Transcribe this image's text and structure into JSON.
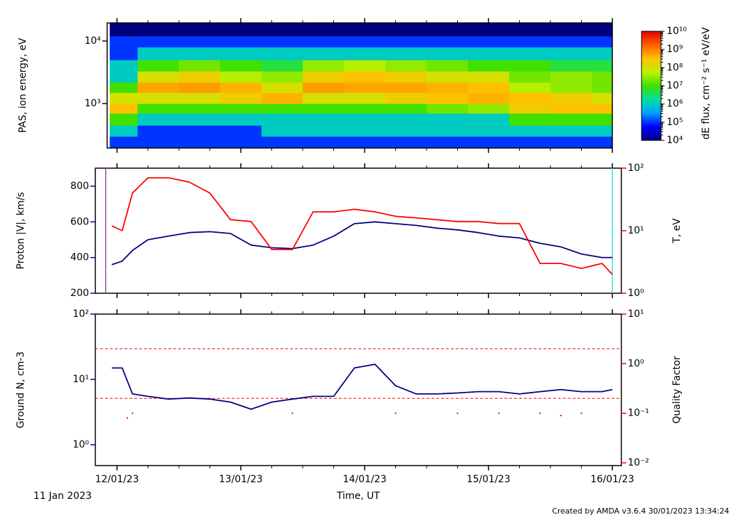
{
  "chart_data": [
    {
      "type": "heatmap",
      "ylabel": "PAS, ion energy, eV",
      "log_y": true,
      "xlim": [
        22.1,
        120
      ],
      "ylim": [
        195,
        19450
      ],
      "yticks": [
        {
          "value": 1000,
          "label": "10³"
        },
        {
          "value": 10000,
          "label": "10⁴"
        }
      ],
      "x_edges": [
        22.6,
        28,
        36,
        44,
        52,
        60,
        68,
        76,
        84,
        92,
        100,
        108,
        116,
        120
      ],
      "y_edges": [
        195,
        300,
        450,
        700,
        1000,
        1500,
        2200,
        3300,
        5000,
        8000,
        12000,
        19450
      ],
      "z": [
        [
          100000.0,
          1000000.0,
          10000000.0,
          300000000.0,
          100000000.0,
          10000000.0,
          1000000.0,
          1000000.0,
          100000.0,
          100000.0,
          10000.0
        ],
        [
          100000.0,
          100000.0,
          1000000.0,
          10000000.0,
          100000000.0,
          500000000.0,
          100000000.0,
          10000000.0,
          1000000.0,
          100000.0,
          10000.0
        ],
        [
          100000.0,
          100000.0,
          1000000.0,
          10000000.0,
          100000000.0,
          600000000.0,
          200000000.0,
          20000000.0,
          1000000.0,
          100000.0,
          10000.0
        ],
        [
          100000.0,
          100000.0,
          1000000.0,
          10000000.0,
          200000000.0,
          400000000.0,
          50000000.0,
          10000000.0,
          1000000.0,
          100000.0,
          10000.0
        ],
        [
          100000.0,
          1000000.0,
          1000000.0,
          10000000.0,
          400000000.0,
          100000000.0,
          30000000.0,
          5000000.0,
          1000000.0,
          100000.0,
          10000.0
        ],
        [
          100000.0,
          1000000.0,
          1000000.0,
          10000000.0,
          100000000.0,
          600000000.0,
          200000000.0,
          30000000.0,
          1000000.0,
          100000.0,
          10000.0
        ],
        [
          100000.0,
          1000000.0,
          1000000.0,
          10000000.0,
          100000000.0,
          500000000.0,
          300000000.0,
          50000000.0,
          1000000.0,
          100000.0,
          10000.0
        ],
        [
          100000.0,
          1000000.0,
          1000000.0,
          10000000.0,
          200000000.0,
          500000000.0,
          200000000.0,
          30000000.0,
          1000000.0,
          100000.0,
          10000.0
        ],
        [
          100000.0,
          1000000.0,
          1000000.0,
          20000000.0,
          300000000.0,
          400000000.0,
          100000000.0,
          20000000.0,
          1000000.0,
          100000.0,
          10000.0
        ],
        [
          100000.0,
          1000000.0,
          1000000.0,
          30000000.0,
          400000000.0,
          300000000.0,
          100000000.0,
          10000000.0,
          1000000.0,
          100000.0,
          10000.0
        ],
        [
          100000.0,
          1000000.0,
          10000000.0,
          200000000.0,
          300000000.0,
          50000000.0,
          20000000.0,
          10000000.0,
          1000000.0,
          100000.0,
          10000.0
        ],
        [
          100000.0,
          1000000.0,
          10000000.0,
          300000000.0,
          200000000.0,
          30000000.0,
          30000000.0,
          5000000.0,
          1000000.0,
          100000.0,
          10000.0
        ],
        [
          100000.0,
          1000000.0,
          10000000.0,
          300000000.0,
          100000000.0,
          20000000.0,
          20000000.0,
          5000000.0,
          1000000.0,
          100000.0,
          10000.0
        ]
      ],
      "colorbar": {
        "label": "dE flux, cm⁻² s⁻¹ eV/eV",
        "log": true,
        "lim": [
          10000,
          10000000000
        ],
        "ticks": [
          {
            "value": 10000,
            "label": "10⁴"
          },
          {
            "value": 100000,
            "label": "10⁵"
          },
          {
            "value": 1000000,
            "label": "10⁶"
          },
          {
            "value": 10000000,
            "label": "10⁷"
          },
          {
            "value": 100000000,
            "label": "10⁸"
          },
          {
            "value": 1000000000,
            "label": "10⁹"
          },
          {
            "value": 10000000000,
            "label": "10¹⁰"
          }
        ],
        "colormap": [
          "#00007f",
          "#0000ff",
          "#00a0ff",
          "#00e0a0",
          "#40e000",
          "#c0f000",
          "#ffc000",
          "#ff6000",
          "#e00000"
        ]
      }
    },
    {
      "type": "line",
      "xlim": [
        19.8,
        121.75
      ],
      "x": [
        23,
        25,
        27,
        30,
        34,
        38,
        42,
        46,
        50,
        54,
        58,
        62,
        66,
        70,
        74,
        78,
        82,
        86,
        90,
        94,
        98,
        102,
        106,
        110,
        114,
        118,
        120
      ],
      "ylim": [
        200,
        901
      ],
      "yticks": [
        200,
        400,
        600,
        800
      ],
      "y2lim": [
        1,
        100
      ],
      "log_y2": true,
      "y2ticks": [
        {
          "value": 1,
          "label": "10⁰"
        },
        {
          "value": 10,
          "label": "10¹"
        },
        {
          "value": 100,
          "label": "10²"
        }
      ],
      "series": [
        {
          "name": "Proton |V|, km/s",
          "color": "#000080",
          "values": [
            360,
            380,
            440,
            500,
            520,
            540,
            545,
            535,
            470,
            455,
            450,
            470,
            520,
            590,
            600,
            590,
            580,
            565,
            555,
            540,
            520,
            510,
            480,
            460,
            420,
            400,
            400
          ]
        },
        {
          "name": "T, eV",
          "color": "#ff0000",
          "axis": "y2",
          "values": [
            12,
            10,
            40,
            70,
            70,
            60,
            40,
            15,
            14,
            5,
            5,
            20,
            20,
            22,
            20,
            17,
            16,
            15,
            14,
            14,
            13,
            13,
            3,
            3,
            2.5,
            3,
            2
          ]
        }
      ],
      "vlines": [
        {
          "x": 21.8,
          "color": "#a040b0"
        },
        {
          "x": 120,
          "color": "#40e0e0"
        }
      ]
    },
    {
      "type": "line",
      "xlim": [
        19.8,
        121.75
      ],
      "xlabel": "Time, UT",
      "xticks": [
        {
          "value": 24,
          "label": "12/01/23"
        },
        {
          "value": 48,
          "label": "13/01/23"
        },
        {
          "value": 72,
          "label": "14/01/23"
        },
        {
          "value": 96,
          "label": "15/01/23"
        },
        {
          "value": 120,
          "label": "16/01/23"
        }
      ],
      "x": [
        23,
        25,
        27,
        30,
        34,
        38,
        42,
        46,
        50,
        54,
        58,
        62,
        66,
        70,
        74,
        78,
        82,
        86,
        90,
        94,
        98,
        102,
        106,
        110,
        114,
        118,
        120
      ],
      "ylim": [
        0.48,
        100
      ],
      "log_y": true,
      "yticks": [
        {
          "value": 1,
          "label": "10⁰"
        },
        {
          "value": 10,
          "label": "10¹"
        },
        {
          "value": 100,
          "label": "10²"
        }
      ],
      "y2lim": [
        0.0088,
        10
      ],
      "log_y2": true,
      "y2ticks": [
        {
          "value": 0.01,
          "label": "10⁻²"
        },
        {
          "value": 0.1,
          "label": "10⁻¹"
        },
        {
          "value": 1,
          "label": "10⁰"
        },
        {
          "value": 10,
          "label": "10¹"
        }
      ],
      "series": [
        {
          "name": "Ground N, cm-3",
          "color": "#000080",
          "values": [
            15,
            15,
            6,
            5.5,
            5,
            5.2,
            5,
            4.5,
            3.5,
            4.5,
            5,
            5.5,
            5.5,
            15,
            17,
            8,
            6,
            6,
            6.2,
            6.5,
            6.5,
            6,
            6.5,
            7,
            6.5,
            6.5,
            7
          ]
        },
        {
          "name": "Quality Factor",
          "color": "#ff0000",
          "axis": "y2",
          "mode": "markers",
          "x": [
            26,
            27,
            58,
            78,
            90,
            98,
            106,
            110,
            114
          ],
          "values": [
            0.08,
            0.1,
            0.1,
            0.1,
            0.1,
            0.1,
            0.1,
            0.09,
            0.1
          ]
        }
      ],
      "hlines": [
        {
          "value": 2,
          "axis": "y2",
          "color": "#ff0000"
        },
        {
          "value": 0.2,
          "axis": "y2",
          "color": "#ff0000"
        }
      ]
    }
  ],
  "date_label": "11 Jan 2023",
  "credit": "Created by AMDA v3.6.4 30/01/2023 13:34:24"
}
